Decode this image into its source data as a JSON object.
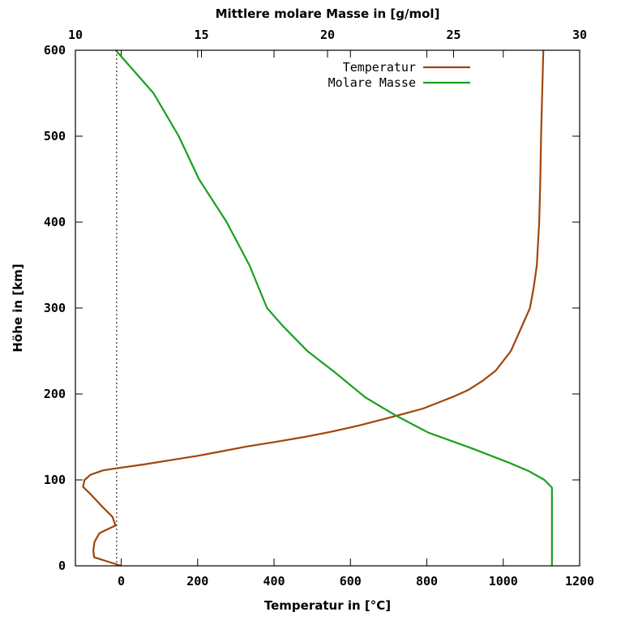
{
  "chart_data": {
    "type": "line",
    "xlabel": "Temperatur in [°C]",
    "ylabel": "Höhe in [km]",
    "x2label": "Mittlere molare Masse in [g/mol]",
    "xlim": [
      -120,
      1200
    ],
    "x2lim": [
      10,
      30
    ],
    "ylim": [
      0,
      600
    ],
    "xticks": [
      0,
      200,
      400,
      600,
      800,
      1000,
      1200
    ],
    "x2ticks": [
      10,
      15,
      20,
      25,
      30
    ],
    "yticks": [
      0,
      100,
      200,
      300,
      400,
      500,
      600
    ],
    "xtick_labels": [
      "0",
      "200",
      "400",
      "600",
      "800",
      "1000",
      "1200"
    ],
    "x2tick_labels": [
      "10",
      "15",
      "20",
      "25",
      "30"
    ],
    "ytick_labels": [
      "0",
      "100",
      "200",
      "300",
      "400",
      "500",
      "600"
    ],
    "reference_line": {
      "axis": "x",
      "value": -12,
      "style": "dotted"
    },
    "legend_position": "top-right",
    "series": [
      {
        "name": "Temperatur",
        "axis": "bottom",
        "color": "#a0450c",
        "points": [
          [
            0,
            0
          ],
          [
            -71,
            10
          ],
          [
            -73,
            18
          ],
          [
            -70,
            28
          ],
          [
            -57,
            38
          ],
          [
            -15,
            47
          ],
          [
            -23,
            57
          ],
          [
            -52,
            70
          ],
          [
            -84,
            85
          ],
          [
            -100,
            92
          ],
          [
            -96,
            100
          ],
          [
            -80,
            106
          ],
          [
            -48,
            111
          ],
          [
            -20,
            113
          ],
          [
            60,
            118
          ],
          [
            130,
            123
          ],
          [
            200,
            128
          ],
          [
            260,
            133
          ],
          [
            330,
            139
          ],
          [
            400,
            144
          ],
          [
            480,
            150
          ],
          [
            550,
            156
          ],
          [
            620,
            163
          ],
          [
            690,
            171
          ],
          [
            740,
            177
          ],
          [
            790,
            183
          ],
          [
            830,
            190
          ],
          [
            870,
            197
          ],
          [
            910,
            205
          ],
          [
            945,
            215
          ],
          [
            980,
            227
          ],
          [
            1020,
            250
          ],
          [
            1045,
            275
          ],
          [
            1070,
            300
          ],
          [
            1080,
            325
          ],
          [
            1088,
            350
          ],
          [
            1094,
            400
          ],
          [
            1097,
            450
          ],
          [
            1099,
            500
          ],
          [
            1102,
            550
          ],
          [
            1105,
            600
          ]
        ]
      },
      {
        "name": "Molare Masse",
        "axis": "top",
        "color": "#19a01e",
        "points": [
          [
            28.9,
            0
          ],
          [
            28.9,
            91
          ],
          [
            28.6,
            100
          ],
          [
            28.0,
            110
          ],
          [
            27.2,
            120
          ],
          [
            25.7,
            137
          ],
          [
            24.0,
            155
          ],
          [
            22.7,
            175
          ],
          [
            21.5,
            196
          ],
          [
            20.3,
            225
          ],
          [
            19.2,
            250
          ],
          [
            18.2,
            280
          ],
          [
            17.6,
            300
          ],
          [
            16.9,
            350
          ],
          [
            16.0,
            400
          ],
          [
            14.9,
            450
          ],
          [
            14.1,
            500
          ],
          [
            13.1,
            550
          ],
          [
            11.6,
            600
          ]
        ]
      }
    ]
  }
}
